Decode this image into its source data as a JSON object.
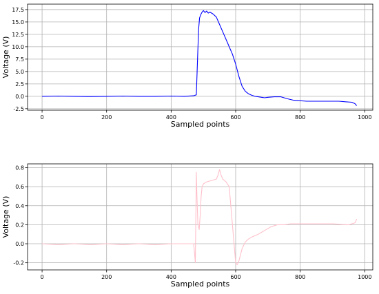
{
  "chart_data": [
    {
      "type": "line",
      "xlabel": "Sampled points",
      "ylabel": "Voltage (V)",
      "xlim": [
        -45,
        1025
      ],
      "ylim": [
        -2.8,
        18.6
      ],
      "xticks": [
        0,
        200,
        400,
        600,
        800,
        1000
      ],
      "yticks": [
        -2.5,
        0.0,
        2.5,
        5.0,
        7.5,
        10.0,
        12.5,
        15.0,
        17.5
      ],
      "ytick_labels": [
        "-2.5",
        "0.0",
        "2.5",
        "5.0",
        "7.5",
        "10.0",
        "12.5",
        "15.0",
        "17.5"
      ],
      "grid": true,
      "series": [
        {
          "color": "#0000ff",
          "x": [
            0,
            50,
            100,
            150,
            200,
            250,
            300,
            350,
            400,
            440,
            470,
            478,
            482,
            485,
            488,
            492,
            496,
            500,
            505,
            510,
            515,
            520,
            530,
            540,
            550,
            560,
            570,
            580,
            590,
            600,
            610,
            620,
            630,
            640,
            650,
            660,
            670,
            680,
            690,
            700,
            720,
            740,
            760,
            780,
            800,
            820,
            850,
            880,
            900,
            920,
            940,
            960,
            970,
            975
          ],
          "y": [
            0.0,
            0.05,
            0.0,
            -0.05,
            0.0,
            0.05,
            0.0,
            0.0,
            0.05,
            0.0,
            0.1,
            0.3,
            8.0,
            13.5,
            15.8,
            16.5,
            17.0,
            17.3,
            16.9,
            17.2,
            16.8,
            17.0,
            16.6,
            16.0,
            14.5,
            13.0,
            11.5,
            10.0,
            8.5,
            6.5,
            4.0,
            2.0,
            1.0,
            0.5,
            0.2,
            0.0,
            -0.1,
            -0.2,
            -0.3,
            -0.2,
            -0.1,
            -0.1,
            -0.5,
            -0.8,
            -0.9,
            -1.0,
            -1.0,
            -1.0,
            -1.0,
            -1.0,
            -1.1,
            -1.2,
            -1.5,
            -1.9
          ]
        }
      ]
    },
    {
      "type": "line",
      "xlabel": "Sampled points",
      "ylabel": "Voltage (V)",
      "xlim": [
        -45,
        1025
      ],
      "ylim": [
        -0.275,
        0.84
      ],
      "xticks": [
        0,
        200,
        400,
        600,
        800,
        1000
      ],
      "yticks": [
        -0.2,
        0.0,
        0.2,
        0.4,
        0.6,
        0.8
      ],
      "ytick_labels": [
        "-0.2",
        "0.0",
        "0.2",
        "0.4",
        "0.6",
        "0.8"
      ],
      "grid": true,
      "series": [
        {
          "color": "#ffc0cb",
          "x": [
            0,
            50,
            100,
            150,
            200,
            250,
            300,
            350,
            400,
            450,
            470,
            475,
            478,
            480,
            483,
            487,
            490,
            493,
            496,
            500,
            510,
            520,
            530,
            540,
            545,
            550,
            555,
            560,
            570,
            580,
            590,
            600,
            605,
            610,
            620,
            630,
            640,
            650,
            670,
            690,
            710,
            730,
            750,
            770,
            800,
            850,
            900,
            950,
            970,
            975
          ],
          "y": [
            0.0,
            -0.01,
            0.0,
            -0.01,
            0.0,
            -0.01,
            0.0,
            -0.01,
            0.0,
            0.0,
            0.0,
            -0.2,
            0.75,
            0.5,
            0.2,
            0.15,
            0.3,
            0.5,
            0.6,
            0.63,
            0.65,
            0.66,
            0.67,
            0.68,
            0.72,
            0.78,
            0.72,
            0.68,
            0.65,
            0.6,
            0.2,
            -0.2,
            -0.22,
            -0.18,
            -0.05,
            0.02,
            0.05,
            0.07,
            0.1,
            0.14,
            0.18,
            0.2,
            0.2,
            0.21,
            0.21,
            0.21,
            0.21,
            0.2,
            0.22,
            0.26
          ]
        }
      ]
    }
  ]
}
